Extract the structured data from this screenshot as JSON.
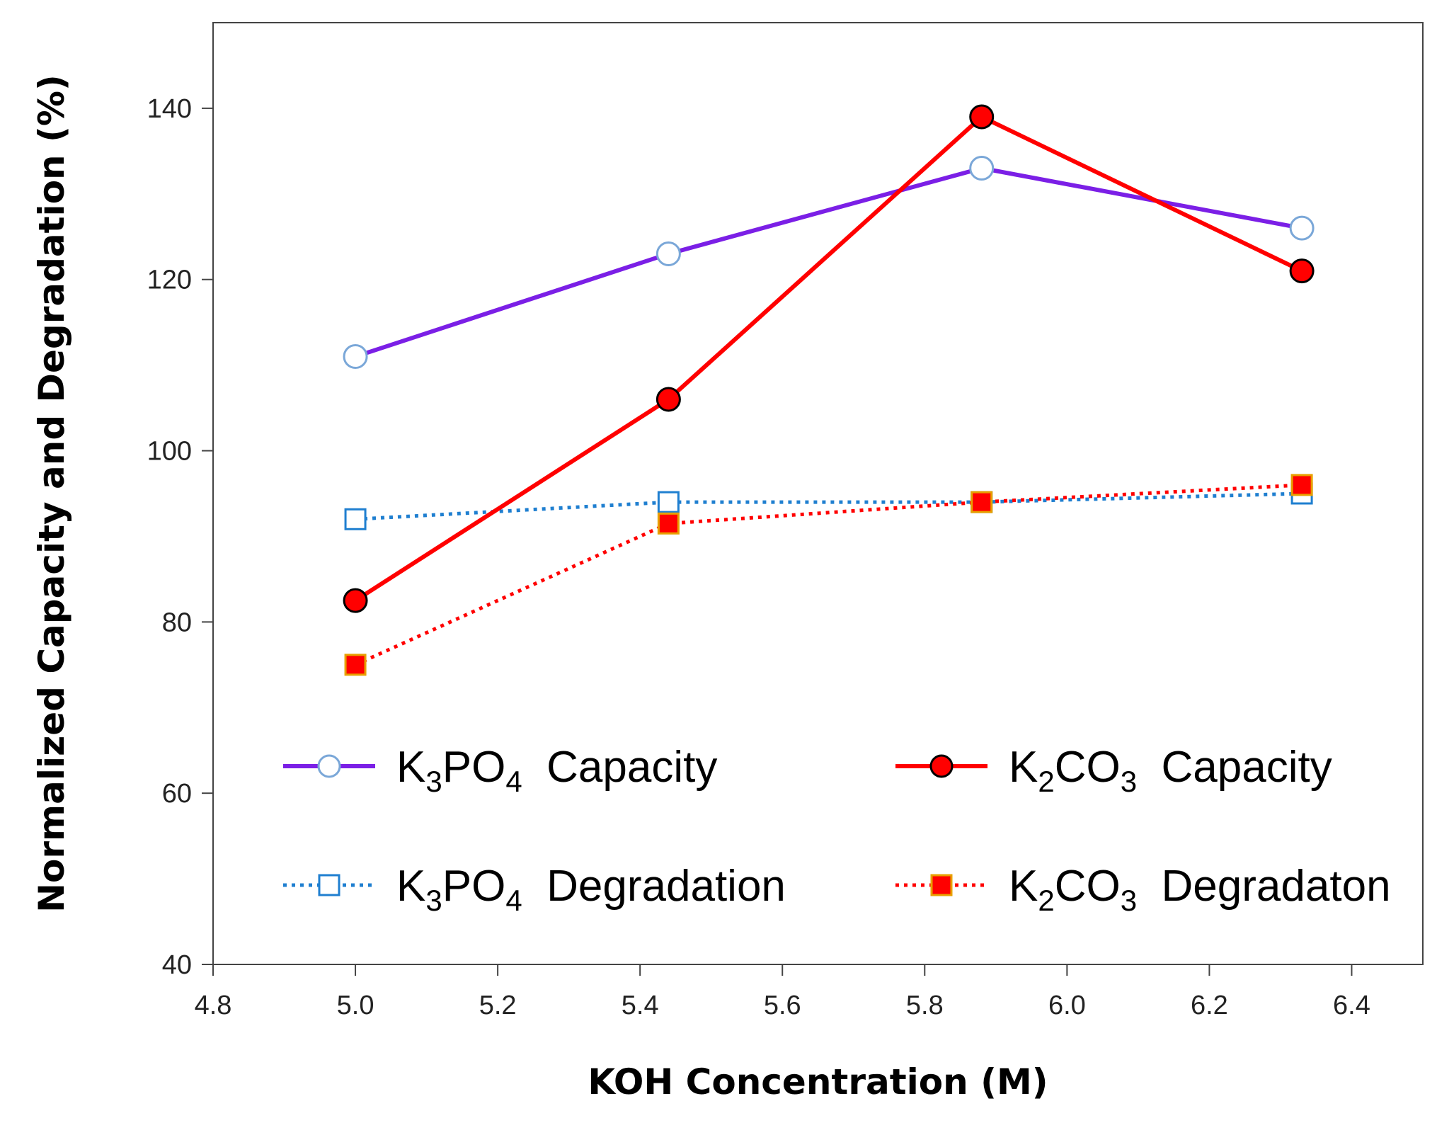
{
  "chart_data": {
    "type": "line",
    "xlabel": "KOH Concentration (M)",
    "ylabel": "Normalized Capacity and Degradation (%)",
    "xlim": [
      4.8,
      6.5
    ],
    "ylim": [
      40,
      150
    ],
    "xticks": [
      "4.8",
      "5.0",
      "5.2",
      "5.4",
      "5.6",
      "5.8",
      "6.0",
      "6.2",
      "6.4"
    ],
    "yticks": [
      "40",
      "60",
      "80",
      "100",
      "120",
      "140"
    ],
    "x": [
      5.0,
      5.44,
      5.88,
      6.33
    ],
    "series": [
      {
        "name": "K3PO4 Capacity",
        "legend": {
          "a": "K",
          "sub1": "3",
          "b": "PO",
          "sub2": "4",
          "suffix": "Capacity"
        },
        "values": [
          111,
          123,
          133,
          126
        ],
        "color": "#7b1fe6",
        "line": "solid",
        "marker": "circle-open",
        "markerStroke": "#7aa7d8"
      },
      {
        "name": "K2CO3 Capacity",
        "legend": {
          "a": "K",
          "sub1": "2",
          "b": "CO",
          "sub2": "3",
          "suffix": "Capacity"
        },
        "values": [
          82.5,
          106,
          139,
          121
        ],
        "color": "#ff0000",
        "line": "solid",
        "marker": "circle-filled",
        "markerStroke": "#000000"
      },
      {
        "name": "K3PO4 Degradation",
        "legend": {
          "a": "K",
          "sub1": "3",
          "b": "PO",
          "sub2": "4",
          "suffix": "Degradation"
        },
        "values": [
          92,
          94,
          94,
          95
        ],
        "color": "#1f7fd0",
        "line": "dotted",
        "marker": "square-open",
        "markerStroke": "#1f7fd0"
      },
      {
        "name": "K2CO3 Degradaton",
        "legend": {
          "a": "K",
          "sub1": "2",
          "b": "CO",
          "sub2": "3",
          "suffix": "Degradaton"
        },
        "values": [
          75,
          91.5,
          94,
          96
        ],
        "color": "#ff0000",
        "line": "dotted",
        "marker": "square-filled",
        "markerStroke": "#e8a000"
      }
    ]
  }
}
